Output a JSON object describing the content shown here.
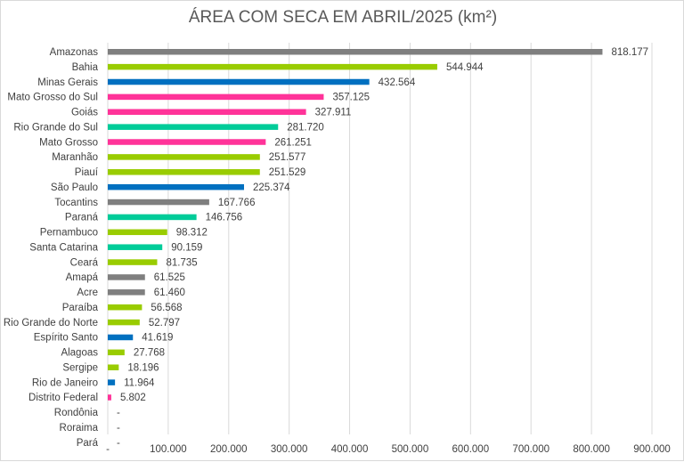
{
  "chart_data": {
    "type": "bar",
    "orientation": "horizontal",
    "title": "ÁREA COM SECA EM ABRIL/2025 (km²)",
    "xlim": [
      0,
      900000
    ],
    "xticks": [
      0,
      100000,
      200000,
      300000,
      400000,
      500000,
      600000,
      700000,
      800000,
      900000
    ],
    "xtick_labels": [
      "-",
      "100.000",
      "200.000",
      "300.000",
      "400.000",
      "500.000",
      "600.000",
      "700.000",
      "800.000",
      "900.000"
    ],
    "grid": true,
    "legend": "none",
    "categories": [
      "Amazonas",
      "Bahia",
      "Minas Gerais",
      "Mato Grosso do Sul",
      "Goiás",
      "Rio Grande do Sul",
      "Mato Grosso",
      "Maranhão",
      "Piauí",
      "São Paulo",
      "Tocantins",
      "Paraná",
      "Pernambuco",
      "Santa Catarina",
      "Ceará",
      "Amapá",
      "Acre",
      "Paraíba",
      "Rio Grande do Norte",
      "Espírito Santo",
      "Alagoas",
      "Sergipe",
      "Rio de Janeiro",
      "Distrito Federal",
      "Rondônia",
      "Roraima",
      "Pará"
    ],
    "values": [
      818177,
      544944,
      432564,
      357125,
      327911,
      281720,
      261251,
      251577,
      251529,
      225374,
      167766,
      146756,
      98312,
      90159,
      81735,
      61525,
      61460,
      56568,
      52797,
      41619,
      27768,
      18196,
      11964,
      5802,
      0,
      0,
      0
    ],
    "value_labels": [
      "818.177",
      "544.944",
      "432.564",
      "357.125",
      "327.911",
      "281.720",
      "261.251",
      "251.577",
      "251.529",
      "225.374",
      "167.766",
      "146.756",
      "98.312",
      "90.159",
      "81.735",
      "61.525",
      "61.460",
      "56.568",
      "52.797",
      "41.619",
      "27.768",
      "18.196",
      "11.964",
      "5.802",
      "-",
      "-",
      "-"
    ],
    "bar_colors": [
      "#7f7f7f",
      "#99cc00",
      "#0070c0",
      "#ff3399",
      "#ff3399",
      "#00cc99",
      "#ff3399",
      "#99cc00",
      "#99cc00",
      "#0070c0",
      "#7f7f7f",
      "#00cc99",
      "#99cc00",
      "#00cc99",
      "#99cc00",
      "#7f7f7f",
      "#7f7f7f",
      "#99cc00",
      "#99cc00",
      "#0070c0",
      "#99cc00",
      "#99cc00",
      "#0070c0",
      "#ff3399",
      "#7f7f7f",
      "#7f7f7f",
      "#7f7f7f"
    ]
  }
}
